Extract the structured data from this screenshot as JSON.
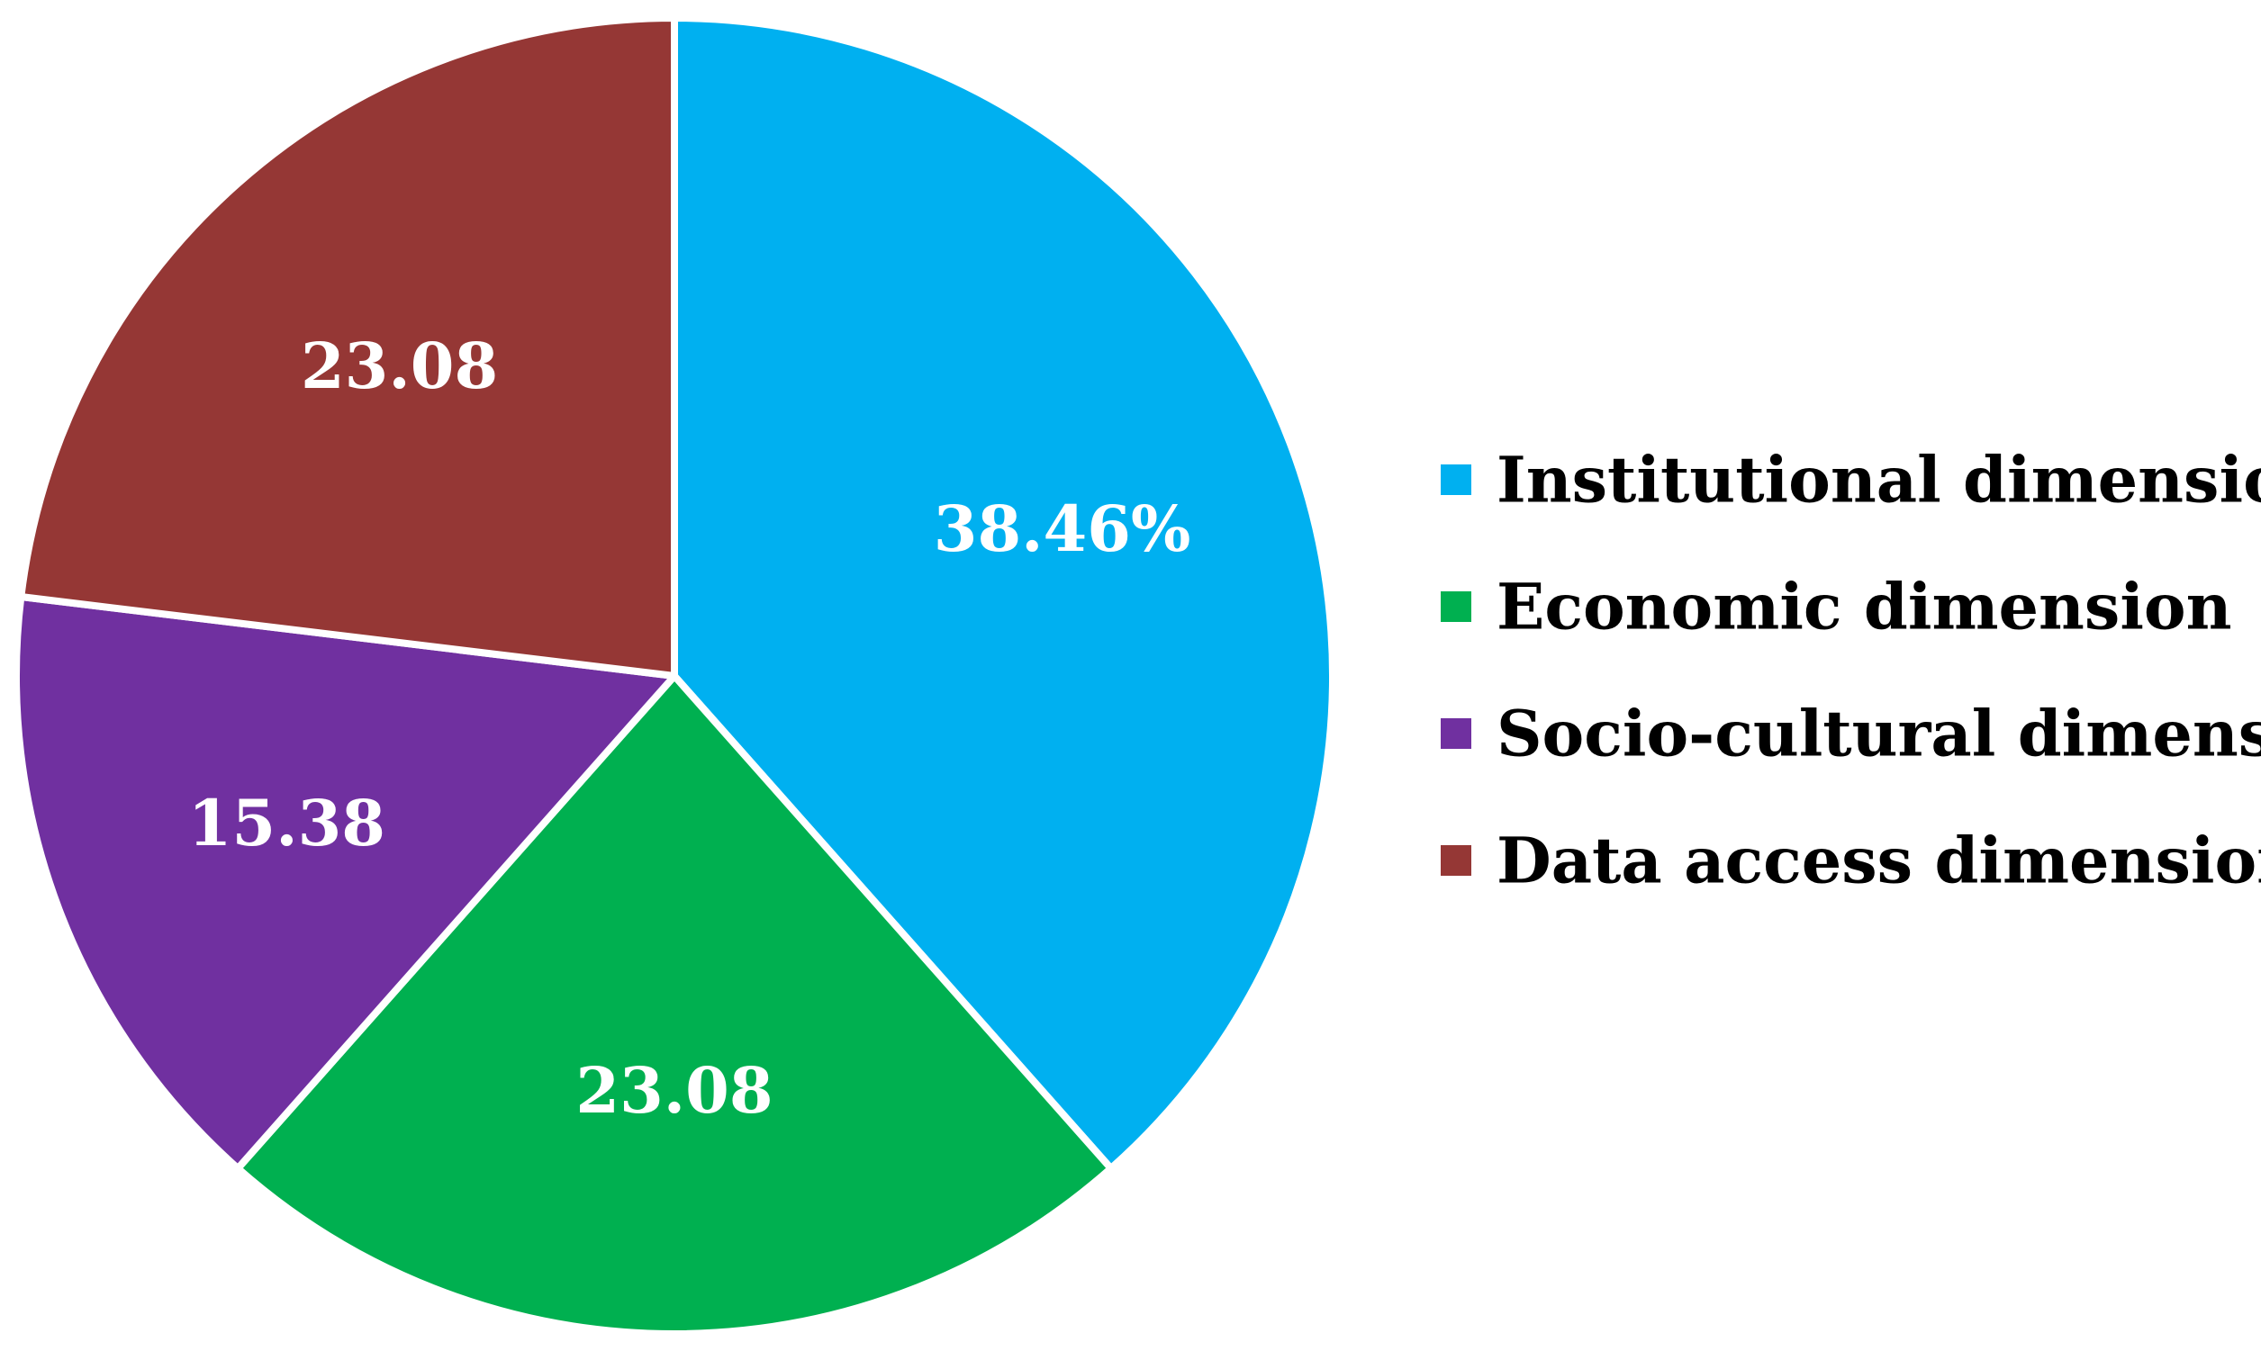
{
  "chart_data": {
    "type": "pie",
    "categories": [
      "Institutional dimension",
      "Economic dimension",
      "Socio-cultural dimension",
      "Data access dimension"
    ],
    "values": [
      38.46,
      23.08,
      15.38,
      23.08
    ],
    "labels": [
      "38.46%",
      "23.08",
      "15.38",
      "23.08"
    ],
    "colors": [
      "#00B0F0",
      "#00B050",
      "#7030A0",
      "#953735"
    ],
    "legend_position": "right"
  }
}
